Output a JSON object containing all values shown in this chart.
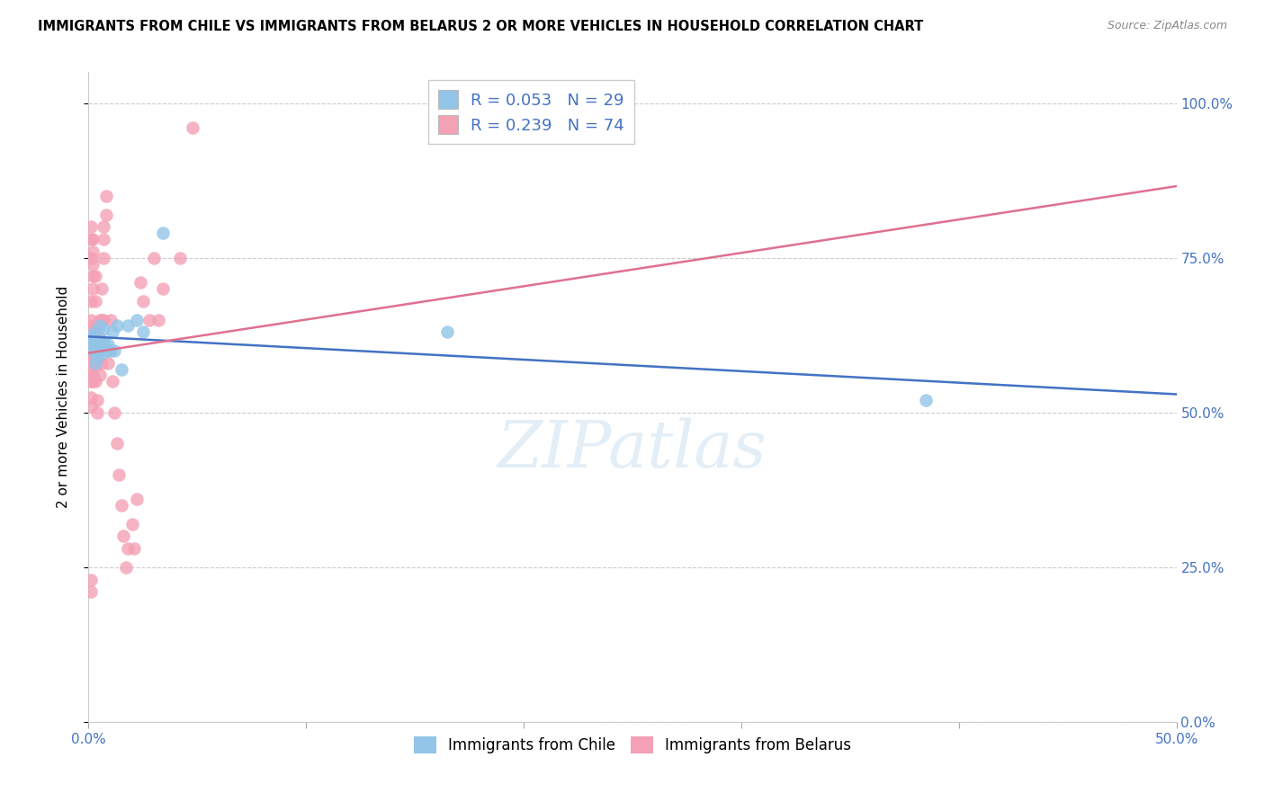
{
  "title": "IMMIGRANTS FROM CHILE VS IMMIGRANTS FROM BELARUS 2 OR MORE VEHICLES IN HOUSEHOLD CORRELATION CHART",
  "source": "Source: ZipAtlas.com",
  "ylabel": "2 or more Vehicles in Household",
  "xlim": [
    0.0,
    0.5
  ],
  "ylim": [
    0.0,
    1.05
  ],
  "xticks": [
    0.0,
    0.1,
    0.2,
    0.3,
    0.4,
    0.5
  ],
  "xticklabels_ends": [
    "0.0%",
    "50.0%"
  ],
  "yticks": [
    0.0,
    0.25,
    0.5,
    0.75,
    1.0
  ],
  "yticklabels": [
    "0.0%",
    "25.0%",
    "50.0%",
    "75.0%",
    "100.0%"
  ],
  "chile_R": 0.053,
  "chile_N": 29,
  "belarus_R": 0.239,
  "belarus_N": 74,
  "chile_color": "#92C5E8",
  "belarus_color": "#F4A0B5",
  "chile_line_color": "#4472C4",
  "belarus_line_color": "#E07090",
  "tick_color": "#4472C4",
  "legend_label_chile": "Immigrants from Chile",
  "legend_label_belarus": "Immigrants from Belarus",
  "watermark": "ZIPatlas",
  "chile_x": [
    0.001,
    0.001,
    0.002,
    0.002,
    0.003,
    0.003,
    0.003,
    0.004,
    0.004,
    0.005,
    0.005,
    0.005,
    0.006,
    0.006,
    0.007,
    0.007,
    0.008,
    0.009,
    0.01,
    0.011,
    0.012,
    0.013,
    0.015,
    0.018,
    0.022,
    0.025,
    0.034,
    0.165,
    0.385
  ],
  "chile_y": [
    0.615,
    0.625,
    0.6,
    0.62,
    0.58,
    0.61,
    0.63,
    0.59,
    0.615,
    0.6,
    0.615,
    0.64,
    0.595,
    0.615,
    0.615,
    0.635,
    0.6,
    0.61,
    0.6,
    0.63,
    0.6,
    0.64,
    0.57,
    0.64,
    0.65,
    0.63,
    0.79,
    0.63,
    0.52
  ],
  "belarus_x": [
    0.001,
    0.001,
    0.001,
    0.001,
    0.001,
    0.001,
    0.001,
    0.001,
    0.001,
    0.001,
    0.001,
    0.001,
    0.001,
    0.001,
    0.001,
    0.001,
    0.002,
    0.002,
    0.002,
    0.002,
    0.002,
    0.002,
    0.002,
    0.002,
    0.002,
    0.002,
    0.003,
    0.003,
    0.003,
    0.003,
    0.003,
    0.003,
    0.003,
    0.004,
    0.004,
    0.004,
    0.004,
    0.004,
    0.005,
    0.005,
    0.005,
    0.005,
    0.006,
    0.006,
    0.006,
    0.006,
    0.007,
    0.007,
    0.007,
    0.007,
    0.008,
    0.008,
    0.009,
    0.009,
    0.01,
    0.011,
    0.012,
    0.013,
    0.014,
    0.015,
    0.016,
    0.017,
    0.018,
    0.02,
    0.021,
    0.022,
    0.024,
    0.025,
    0.028,
    0.03,
    0.032,
    0.034,
    0.042,
    0.048
  ],
  "belarus_y": [
    0.23,
    0.21,
    0.62,
    0.64,
    0.68,
    0.78,
    0.75,
    0.8,
    0.6,
    0.65,
    0.58,
    0.56,
    0.55,
    0.51,
    0.525,
    0.59,
    0.62,
    0.63,
    0.7,
    0.72,
    0.76,
    0.78,
    0.74,
    0.56,
    0.59,
    0.55,
    0.6,
    0.62,
    0.68,
    0.72,
    0.55,
    0.58,
    0.575,
    0.62,
    0.64,
    0.52,
    0.5,
    0.6,
    0.62,
    0.6,
    0.56,
    0.65,
    0.6,
    0.65,
    0.58,
    0.7,
    0.75,
    0.8,
    0.78,
    0.65,
    0.82,
    0.85,
    0.6,
    0.58,
    0.65,
    0.55,
    0.5,
    0.45,
    0.4,
    0.35,
    0.3,
    0.25,
    0.28,
    0.32,
    0.28,
    0.36,
    0.71,
    0.68,
    0.65,
    0.75,
    0.65,
    0.7,
    0.75,
    0.96
  ]
}
